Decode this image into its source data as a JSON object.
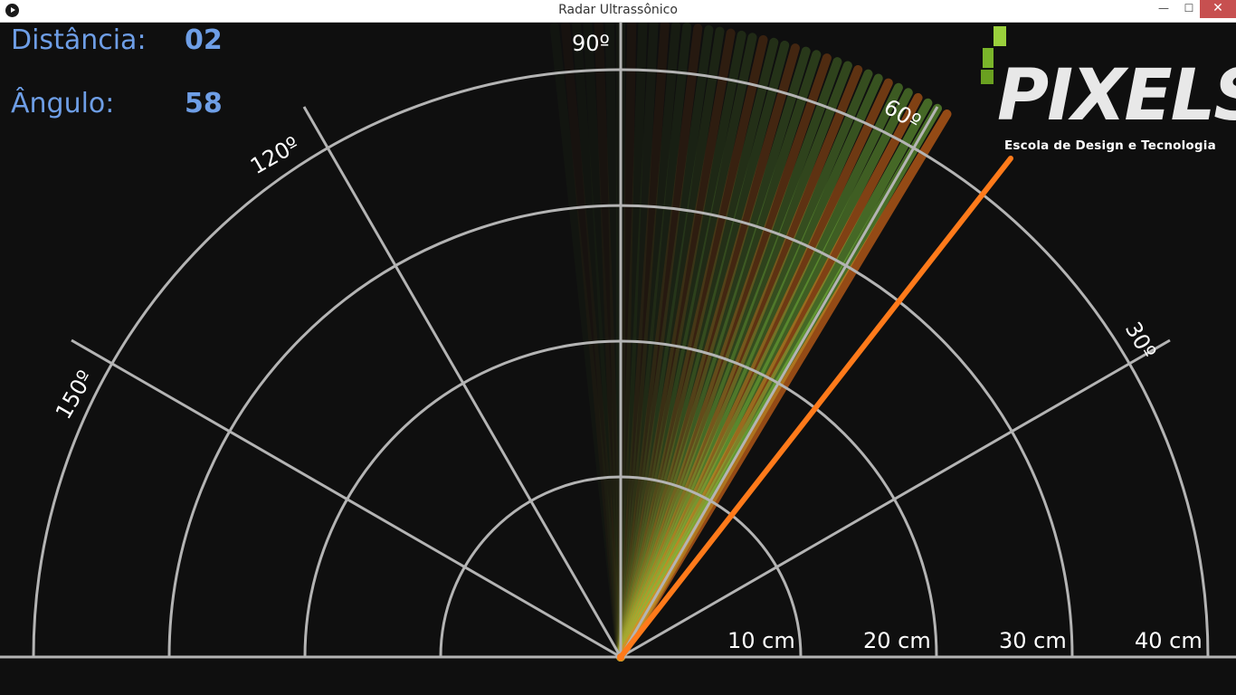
{
  "window": {
    "title": "Radar Ultrassônico",
    "minimize_glyph": "—",
    "maximize_glyph": "☐",
    "close_glyph": "✕"
  },
  "hud": {
    "distance_label": "Distância:",
    "distance_value": "02",
    "angle_label": "Ângulo:",
    "angle_value": "58"
  },
  "logo": {
    "wordmark": "PIXELS",
    "tagline": "Escola de Design e Tecnologia",
    "accent_color": "#8cc63f"
  },
  "radar": {
    "angle_labels": [
      "90º",
      "120º",
      "150º",
      "60º",
      "30º"
    ],
    "distance_labels": [
      "10 cm",
      "20 cm",
      "30 cm",
      "40 cm"
    ],
    "current_angle": 58,
    "colors": {
      "grid": "#b4b4b4",
      "sweep_green": "#7cc23e",
      "sweep_orange": "#ff7a1a",
      "label": "#ffffff"
    }
  }
}
